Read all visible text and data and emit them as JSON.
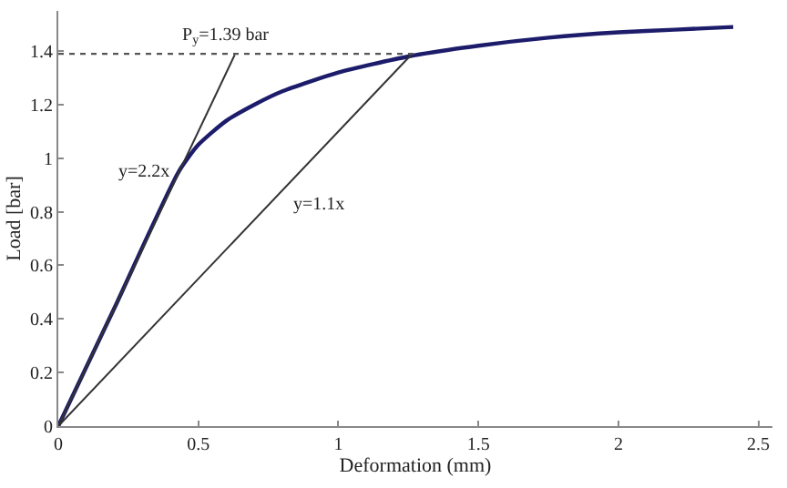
{
  "chart_data": {
    "type": "line",
    "xlabel": "Deformation (mm)",
    "ylabel": "Load [bar]",
    "xlim": [
      0,
      2.55
    ],
    "ylim": [
      0,
      1.55
    ],
    "xticks": [
      0,
      0.5,
      1,
      1.5,
      2,
      2.5
    ],
    "yticks": [
      0,
      0.2,
      0.4,
      0.6,
      0.8,
      1,
      1.2,
      1.4
    ],
    "marker": "none",
    "series": [
      {
        "color": "#1c1c6b",
        "x": [
          0,
          0.2,
          0.43,
          0.5,
          0.6,
          0.7,
          0.8,
          1.0,
          1.25,
          1.5,
          1.75,
          2.0,
          2.2,
          2.41
        ],
        "values": [
          0,
          0.44,
          0.95,
          1.05,
          1.14,
          1.2,
          1.25,
          1.32,
          1.38,
          1.42,
          1.45,
          1.47,
          1.48,
          1.49
        ]
      },
      {
        "color": "#333333",
        "x": [
          0,
          0.63
        ],
        "values": [
          0,
          1.386
        ]
      },
      {
        "color": "#333333",
        "x": [
          0,
          1.26
        ],
        "values": [
          0,
          1.386
        ]
      },
      {
        "color": "#555555",
        "line_style": "dotted",
        "x": [
          0,
          1.27
        ],
        "values": [
          1.39,
          1.39
        ]
      }
    ],
    "annotations": [
      {
        "text": "P$_{y}$=1.39 bar",
        "x": 0.6,
        "y": 1.39
      },
      {
        "text": "y=2.2x",
        "x": 0.43,
        "y": 0.95
      },
      {
        "text": "y=1.1x",
        "x": 0.8,
        "y": 0.88
      }
    ]
  }
}
